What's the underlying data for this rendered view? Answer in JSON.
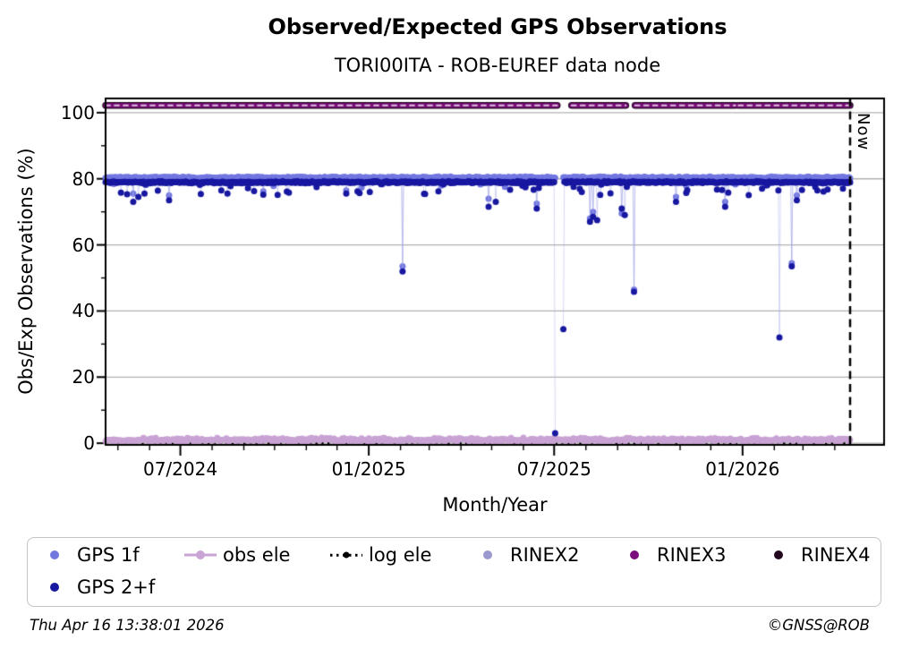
{
  "header": {
    "title": "Observed/Expected GPS Observations",
    "subtitle": "TORI00ITA - ROB-EUREF data node"
  },
  "now_label": "Now",
  "footer": {
    "timestamp": "Thu Apr 16 13:38:01 2026",
    "credit": "©GNSS@ROB"
  },
  "legend": {
    "items": [
      {
        "label": "GPS 1f",
        "marker": "dot",
        "color": "#7277e0"
      },
      {
        "label": "obs ele",
        "marker": "line-dot",
        "color": "#c9a3d4"
      },
      {
        "label": "log ele",
        "marker": "dotted-dot",
        "color": "#000000"
      },
      {
        "label": "RINEX2",
        "marker": "dot",
        "color": "#9b97cf"
      },
      {
        "label": "RINEX3",
        "marker": "dot",
        "color": "#7c0d7c"
      },
      {
        "label": "RINEX4",
        "marker": "dot",
        "color": "#22071f"
      },
      {
        "label": "GPS 2+f",
        "marker": "dot",
        "color": "#1717a0"
      }
    ]
  },
  "chart_data": {
    "type": "scatter",
    "title": "Observed/Expected GPS Observations",
    "subtitle": "TORI00ITA - ROB-EUREF data node",
    "xlabel": "Month/Year",
    "ylabel": "Obs/Exp Observations (%)",
    "x_range": [
      "2024-04-19",
      "2026-04-16"
    ],
    "now_date": "2026-04-16",
    "ylim": [
      -0.5,
      104.3
    ],
    "grid": "horizontal-majors",
    "grid_values": [
      0,
      20,
      40,
      60,
      80,
      100
    ],
    "y_ticks": [
      {
        "value": 0,
        "label": "0"
      },
      {
        "value": 20,
        "label": "20"
      },
      {
        "value": 40,
        "label": "40"
      },
      {
        "value": 60,
        "label": "60"
      },
      {
        "value": 80,
        "label": "80"
      },
      {
        "value": 100,
        "label": "100"
      }
    ],
    "y_minor_ticks": [
      10,
      30,
      50,
      70,
      90
    ],
    "x_major_ticks": [
      {
        "date": "2024-07-01",
        "label": "07/2024"
      },
      {
        "date": "2025-01-01",
        "label": "01/2025"
      },
      {
        "date": "2025-07-01",
        "label": "07/2025"
      },
      {
        "date": "2026-01-01",
        "label": "01/2026"
      }
    ],
    "x_minor_tick_unit": "month",
    "legend_position": "below",
    "series": [
      {
        "name": "RINEX2",
        "type": "hline",
        "value": 102.2,
        "color": "#9b97cf",
        "width": 5,
        "note": "plots at same level, hidden beneath RINEX3",
        "gaps": [
          [
            "2025-07-05",
            "2025-07-17"
          ],
          [
            "2025-09-10",
            "2025-09-17"
          ],
          [
            "2025-12-26",
            "2025-12-27"
          ]
        ]
      },
      {
        "name": "RINEX4",
        "type": "hline",
        "value": 102.2,
        "color": "#22071f",
        "width": 7.5,
        "gaps": [
          [
            "2025-07-05",
            "2025-07-17"
          ],
          [
            "2025-09-10",
            "2025-09-17"
          ],
          [
            "2025-12-26",
            "2025-12-27"
          ]
        ]
      },
      {
        "name": "RINEX3",
        "type": "hline",
        "value": 102.2,
        "color": "#7c0d7c",
        "width": 5,
        "core_dash_color": "#ddc0dd",
        "gaps": [
          [
            "2025-07-05",
            "2025-07-17"
          ],
          [
            "2025-09-10",
            "2025-09-17"
          ],
          [
            "2025-12-26",
            "2025-12-27"
          ]
        ]
      },
      {
        "name": "log ele",
        "type": "dotted-hline",
        "value": 0.0,
        "color": "#000000",
        "width": 2.6
      },
      {
        "name": "obs ele",
        "type": "scatter-daily",
        "color": "#c9a3d4",
        "line_color": "rgba(201,163,212,0.85)",
        "baseline": 1.0,
        "noise": 0.75,
        "min": 0.2,
        "max": 2.2,
        "dip_rate": 0,
        "seed": 27,
        "anomalies": [
          [
            "2025-11-05",
            0.3
          ],
          [
            "2025-11-06",
            0.25
          ],
          [
            "2025-11-07",
            0.3
          ],
          [
            "2025-11-08",
            0.35
          ]
        ]
      },
      {
        "name": "GPS 1f",
        "type": "scatter-daily",
        "color": "#7277e0",
        "line_color": "rgba(165,168,232,0.5)",
        "baseline": 80.35,
        "noise": 0.35,
        "dip_rate": 0.03,
        "dip_min": 0.5,
        "dip_max": 3.2,
        "min": 76.5,
        "seed": 3,
        "gaps": [
          [
            "2025-07-03",
            "2025-07-09"
          ]
        ],
        "anomalies": [
          [
            "2024-05-16",
            75.5
          ],
          [
            "2024-06-20",
            75.0
          ],
          [
            "2024-09-20",
            76.2
          ],
          [
            "2024-12-10",
            76.5
          ],
          [
            "2025-02-03",
            53.5
          ],
          [
            "2025-04-28",
            74.0
          ],
          [
            "2025-06-14",
            72.5
          ],
          [
            "2025-08-05",
            68.0
          ],
          [
            "2025-08-08",
            70.0
          ],
          [
            "2025-09-05",
            69.5
          ],
          [
            "2025-09-17",
            46.5
          ],
          [
            "2025-10-28",
            74.5
          ],
          [
            "2025-12-15",
            73.0
          ],
          [
            "2026-02-18",
            54.5
          ],
          [
            "2026-02-23",
            75.0
          ]
        ]
      },
      {
        "name": "GPS 2+f",
        "type": "scatter-daily",
        "color": "#1717a0",
        "line_color": "rgba(165,168,232,0.45)",
        "baseline": 78.95,
        "noise": 0.35,
        "dip_rate": 0.07,
        "dip_min": 0.5,
        "dip_max": 4.0,
        "min": 74.3,
        "seed": 11,
        "gaps": [
          [
            "2025-07-03",
            "2025-07-09"
          ]
        ],
        "anomalies": [
          [
            "2024-05-16",
            73.0
          ],
          [
            "2024-05-21",
            74.5
          ],
          [
            "2024-05-27",
            75.5
          ],
          [
            "2024-06-20",
            73.5
          ],
          [
            "2024-08-10",
            76.5
          ],
          [
            "2024-08-16",
            75.5
          ],
          [
            "2024-09-20",
            75.2
          ],
          [
            "2024-10-15",
            75.8
          ],
          [
            "2024-12-10",
            75.5
          ],
          [
            "2025-01-02",
            76.0
          ],
          [
            "2025-02-03",
            52.0
          ],
          [
            "2025-04-28",
            71.5
          ],
          [
            "2025-05-05",
            73.0
          ],
          [
            "2025-06-14",
            71.0
          ],
          [
            "2025-07-02",
            3.0
          ],
          [
            "2025-07-10",
            34.5
          ],
          [
            "2025-08-05",
            67.0
          ],
          [
            "2025-08-08",
            68.5
          ],
          [
            "2025-08-12",
            67.5
          ],
          [
            "2025-09-05",
            71.0
          ],
          [
            "2025-09-08",
            69.0
          ],
          [
            "2025-09-17",
            45.8
          ],
          [
            "2025-10-28",
            73.0
          ],
          [
            "2025-12-15",
            71.5
          ],
          [
            "2026-01-20",
            77.0
          ],
          [
            "2026-02-06",
            32.0
          ],
          [
            "2026-02-18",
            53.5
          ],
          [
            "2026-02-23",
            73.5
          ],
          [
            "2026-03-15",
            76.5
          ]
        ]
      }
    ]
  }
}
